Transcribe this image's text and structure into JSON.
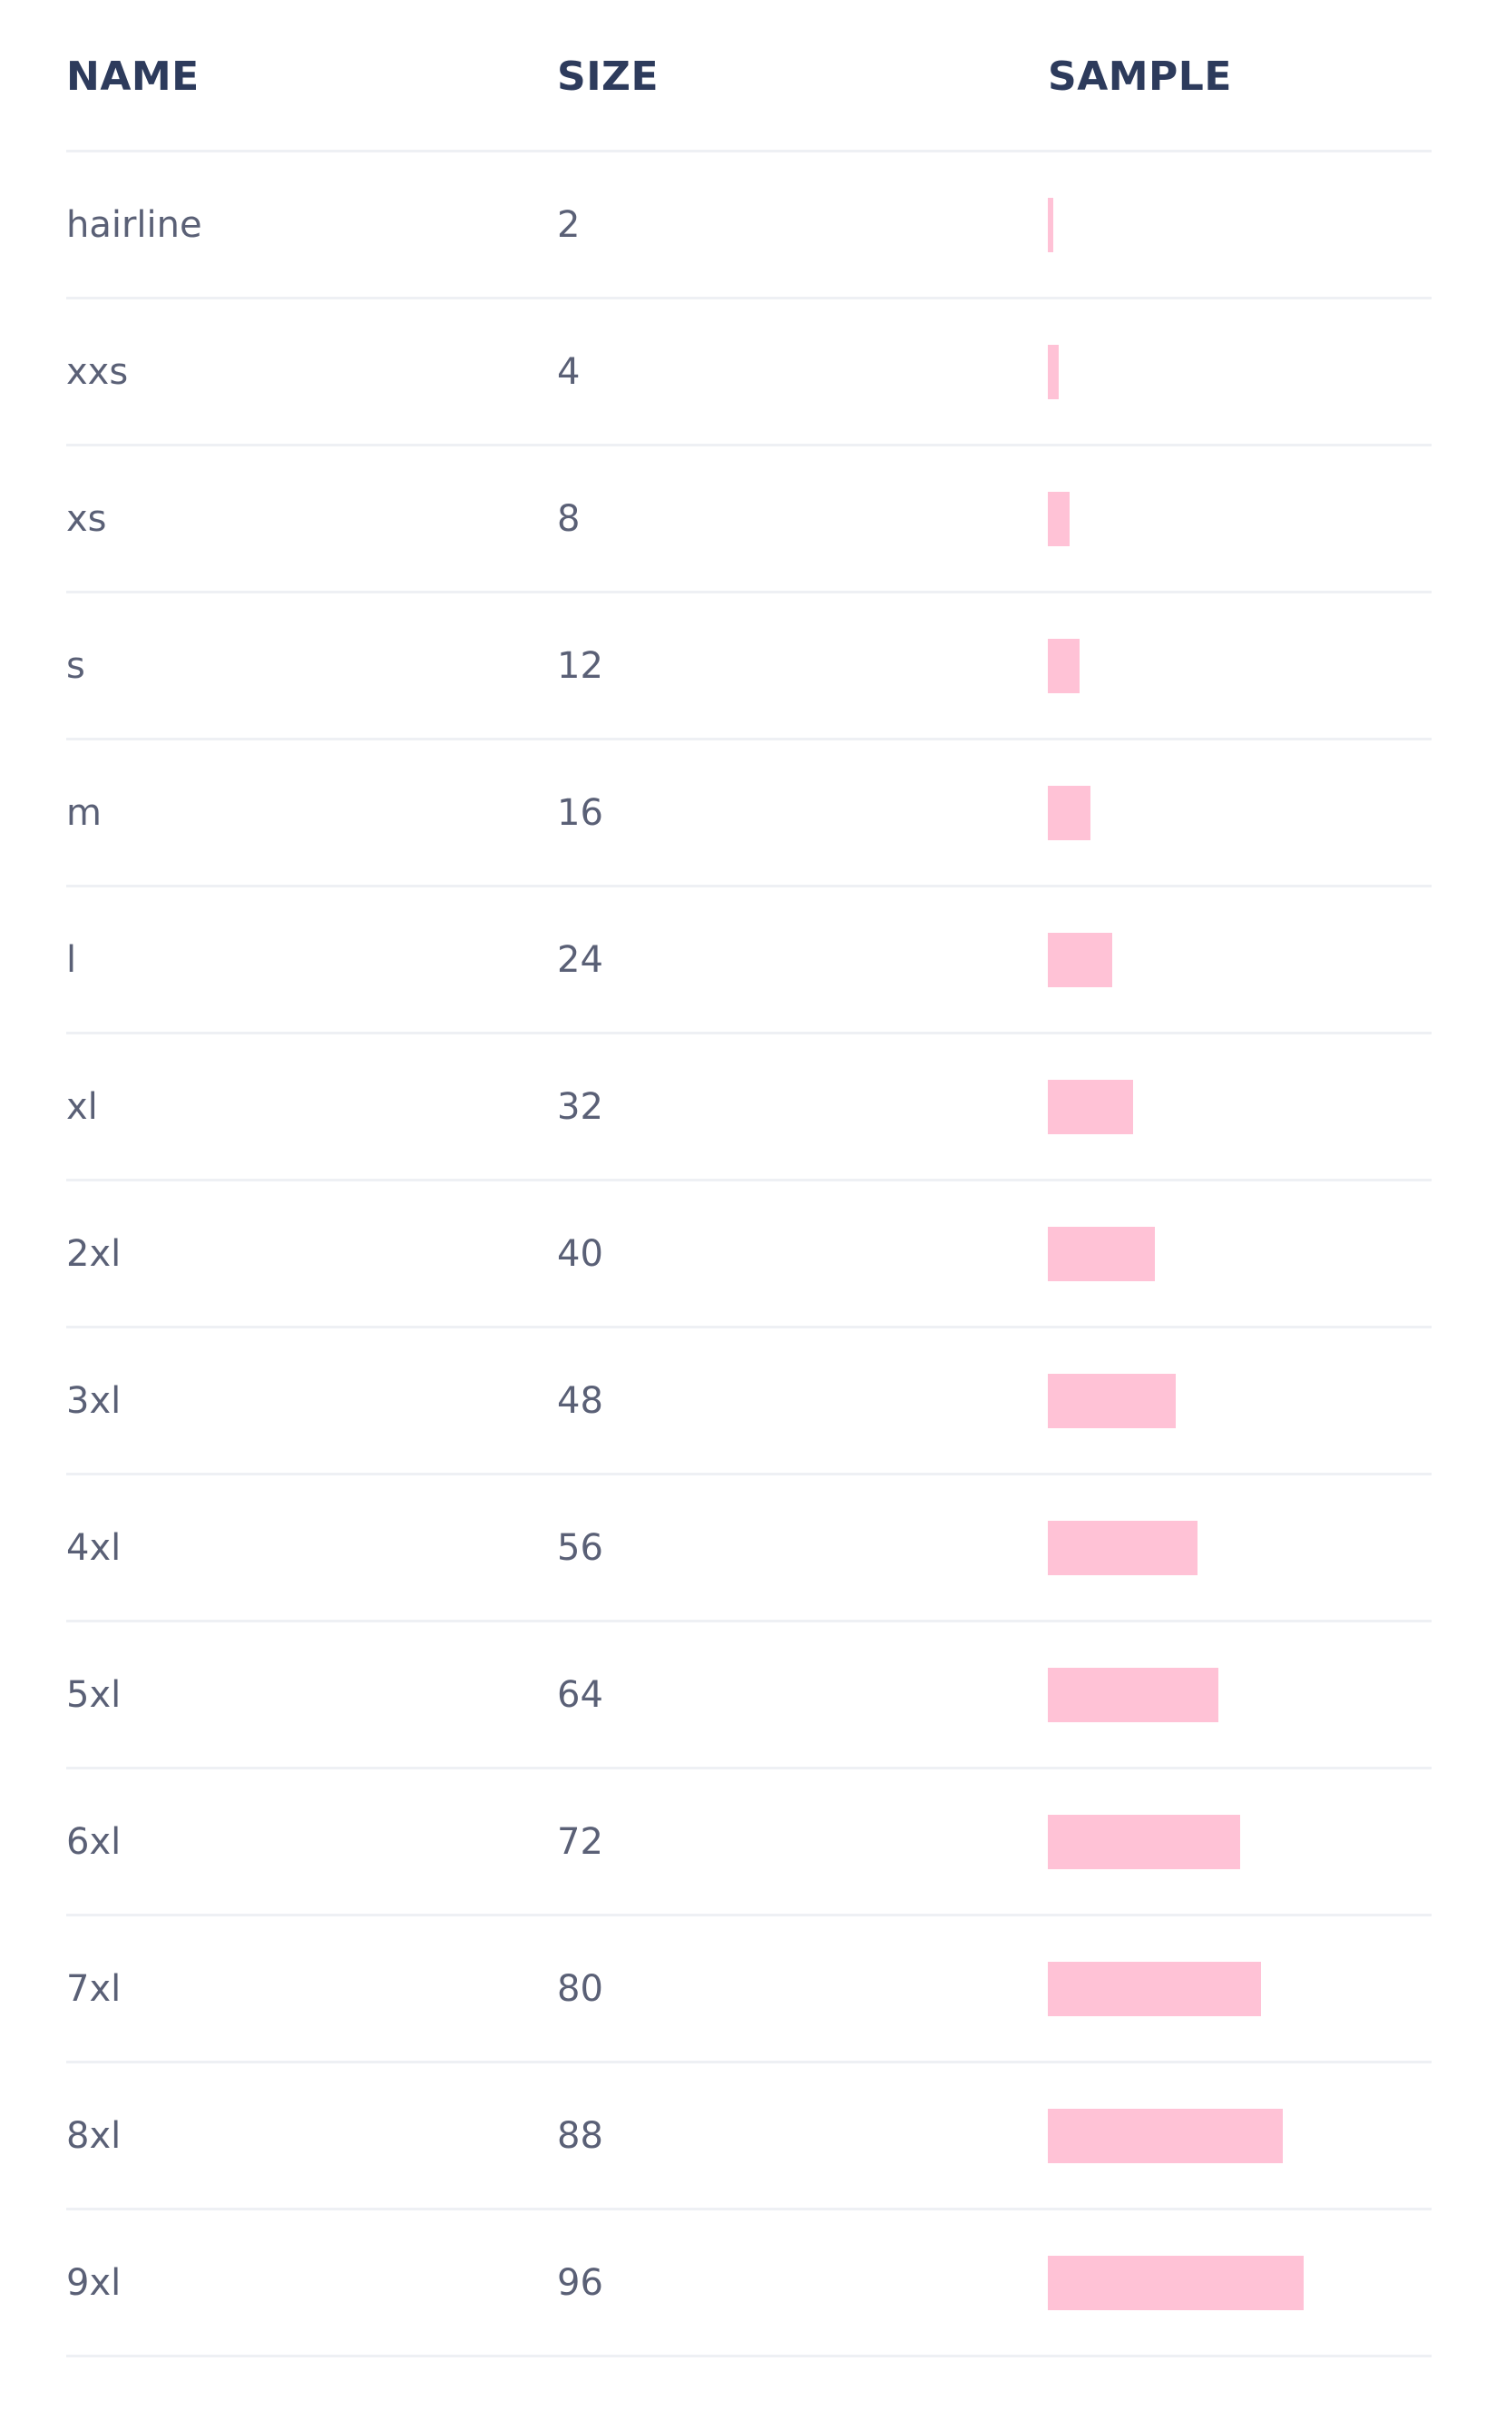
{
  "header": {
    "name": "NAME",
    "size": "SIZE",
    "sample": "SAMPLE"
  },
  "colors": {
    "sample_bar": "#ffc2d6",
    "header_text": "#2d3b5c",
    "body_text": "#5a6076",
    "divider": "#eef0f4"
  },
  "rows": [
    {
      "name": "hairline",
      "size": "2",
      "value": 2
    },
    {
      "name": "xxs",
      "size": "4",
      "value": 4
    },
    {
      "name": "xs",
      "size": "8",
      "value": 8
    },
    {
      "name": "s",
      "size": "12",
      "value": 12
    },
    {
      "name": "m",
      "size": "16",
      "value": 16
    },
    {
      "name": "l",
      "size": "24",
      "value": 24
    },
    {
      "name": "xl",
      "size": "32",
      "value": 32
    },
    {
      "name": "2xl",
      "size": "40",
      "value": 40
    },
    {
      "name": "3xl",
      "size": "48",
      "value": 48
    },
    {
      "name": "4xl",
      "size": "56",
      "value": 56
    },
    {
      "name": "5xl",
      "size": "64",
      "value": 64
    },
    {
      "name": "6xl",
      "size": "72",
      "value": 72
    },
    {
      "name": "7xl",
      "size": "80",
      "value": 80
    },
    {
      "name": "8xl",
      "size": "88",
      "value": 88
    },
    {
      "name": "9xl",
      "size": "96",
      "value": 96
    }
  ]
}
